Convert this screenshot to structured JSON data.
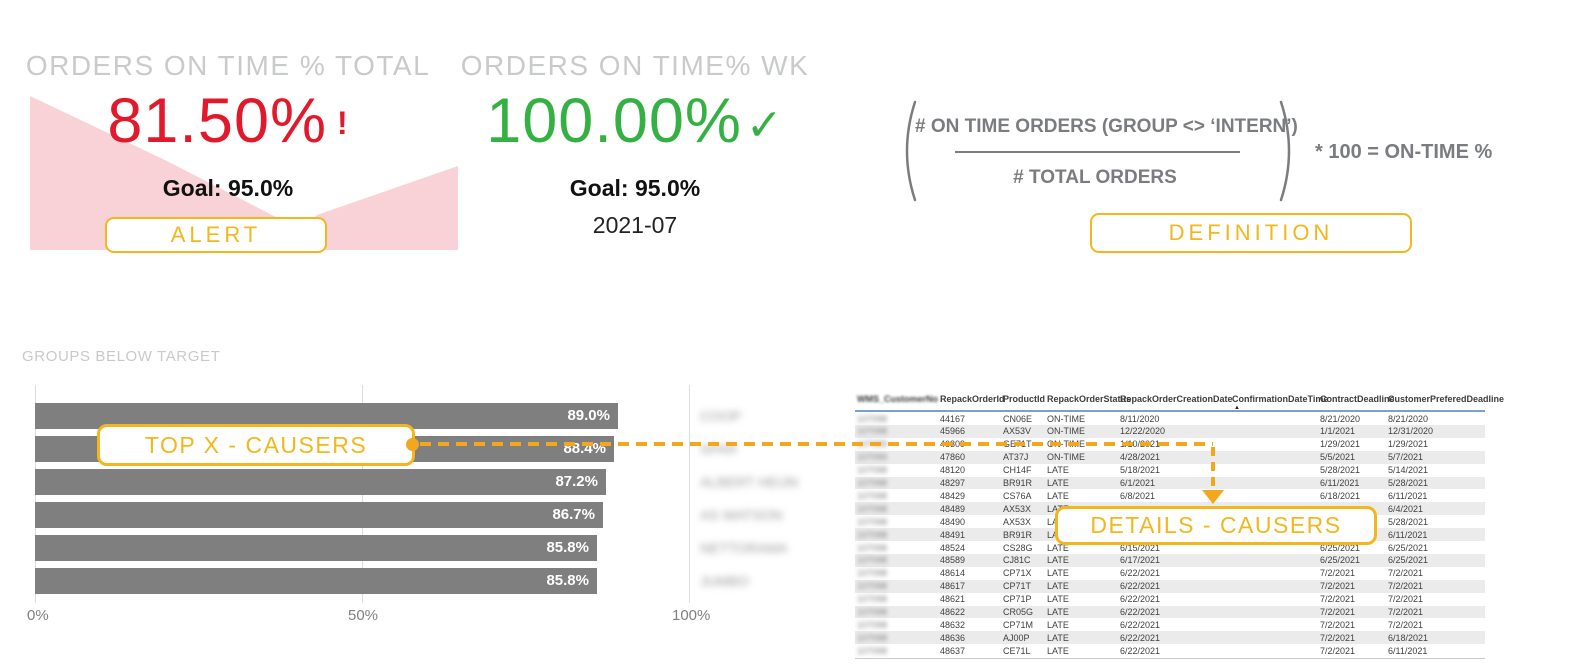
{
  "kpi_total": {
    "title": "ORDERS ON TIME % TOTAL",
    "value": "81.50%",
    "alert_mark": "!",
    "goal": "Goal: 95.0%",
    "button_label": "ALERT"
  },
  "kpi_week": {
    "title": "ORDERS ON TIME% WK",
    "value": "100.00%",
    "check_mark": "✓",
    "goal": "Goal: 95.0%",
    "period": "2021-07"
  },
  "definition": {
    "numerator": "# ON TIME ORDERS (GROUP <> ‘INTERN’)",
    "denominator": "# TOTAL ORDERS",
    "suffix": "* 100  =  ON-TIME %",
    "button_label": "DEFINITION"
  },
  "annotations": {
    "top_x_label": "TOP X - CAUSERS",
    "details_label": "DETAILS - CAUSERS"
  },
  "chart_data": {
    "type": "bar",
    "orientation": "horizontal",
    "title": "GROUPS BELOW TARGET",
    "categories": [
      "COOP",
      "SPAR",
      "ALBERT HEIJN",
      "AS WATSON",
      "NETTORAMA",
      "JUMBO"
    ],
    "categories_blurred": true,
    "values": [
      89.0,
      88.4,
      87.2,
      86.7,
      85.8,
      85.8
    ],
    "value_labels": [
      "89.0%",
      "88.4%",
      "87.2%",
      "86.7%",
      "85.8%",
      "85.8%"
    ],
    "xlim": [
      0,
      100
    ],
    "x_tick_labels": [
      "0%",
      "50%",
      "100%"
    ],
    "bar_color": "#7F7F7F",
    "grid": true,
    "legend": "none"
  },
  "table": {
    "columns": [
      "WMS_CustomerNo",
      "RepackOrderId",
      "ProductId",
      "RepackOrderStatus",
      "RepackOrderCreationDate",
      "ConfirmationDateTime",
      "ContractDeadline",
      "CustomerPreferedDeadline"
    ],
    "sorted_column": "ConfirmationDateTime",
    "sort_direction": "asc",
    "rows": [
      [
        "107098",
        "44167",
        "CN06E",
        "ON-TIME",
        "8/11/2020",
        "",
        "8/21/2020",
        "8/21/2020"
      ],
      [
        "107098",
        "45966",
        "AX53V",
        "ON-TIME",
        "12/22/2020",
        "",
        "1/1/2021",
        "12/31/2020"
      ],
      [
        "107099",
        "46309",
        "GE71T",
        "ON-TIME",
        "1/10/2021",
        "",
        "1/29/2021",
        "1/29/2021"
      ],
      [
        "107099",
        "47860",
        "AT37J",
        "ON-TIME",
        "4/28/2021",
        "",
        "5/5/2021",
        "5/7/2021"
      ],
      [
        "107098",
        "48120",
        "CH14F",
        "LATE",
        "5/18/2021",
        "",
        "5/28/2021",
        "5/14/2021"
      ],
      [
        "107098",
        "48297",
        "BR91R",
        "LATE",
        "6/1/2021",
        "",
        "6/11/2021",
        "5/28/2021"
      ],
      [
        "107098",
        "48429",
        "CS76A",
        "LATE",
        "6/8/2021",
        "",
        "6/18/2021",
        "6/11/2021"
      ],
      [
        "107098",
        "48489",
        "AX53X",
        "LATE",
        "",
        "",
        "",
        "6/4/2021"
      ],
      [
        "107098",
        "48490",
        "AX53X",
        "LATE",
        "",
        "",
        "",
        "5/28/2021"
      ],
      [
        "107098",
        "48491",
        "BR91R",
        "LATE",
        "",
        "",
        "",
        "6/11/2021"
      ],
      [
        "107098",
        "48524",
        "CS28G",
        "LATE",
        "6/15/2021",
        "",
        "6/25/2021",
        "6/25/2021"
      ],
      [
        "107098",
        "48589",
        "CJ81C",
        "LATE",
        "6/17/2021",
        "",
        "6/25/2021",
        "6/25/2021"
      ],
      [
        "107098",
        "48614",
        "CP71X",
        "LATE",
        "6/22/2021",
        "",
        "7/2/2021",
        "7/2/2021"
      ],
      [
        "107098",
        "48617",
        "CP71T",
        "LATE",
        "6/22/2021",
        "",
        "7/2/2021",
        "7/2/2021"
      ],
      [
        "107098",
        "48621",
        "CP71P",
        "LATE",
        "6/22/2021",
        "",
        "7/2/2021",
        "7/2/2021"
      ],
      [
        "107098",
        "48622",
        "CR05G",
        "LATE",
        "6/22/2021",
        "",
        "7/2/2021",
        "7/2/2021"
      ],
      [
        "107098",
        "48632",
        "CP71M",
        "LATE",
        "6/22/2021",
        "",
        "7/2/2021",
        "7/2/2021"
      ],
      [
        "107098",
        "48636",
        "AJ00P",
        "LATE",
        "6/22/2021",
        "",
        "7/2/2021",
        "6/18/2021"
      ],
      [
        "107098",
        "48637",
        "CE71L",
        "LATE",
        "6/22/2021",
        "",
        "7/2/2021",
        "6/11/2021"
      ]
    ]
  },
  "colors": {
    "alert_red": "#E2182B",
    "ok_green": "#35B144",
    "accent_yellow": "#F2B71C",
    "bar_gray": "#7F7F7F",
    "title_gray": "#C8CACC",
    "pink_fill": "#F8D2D6",
    "header_underline_blue": "#78A2C8"
  }
}
